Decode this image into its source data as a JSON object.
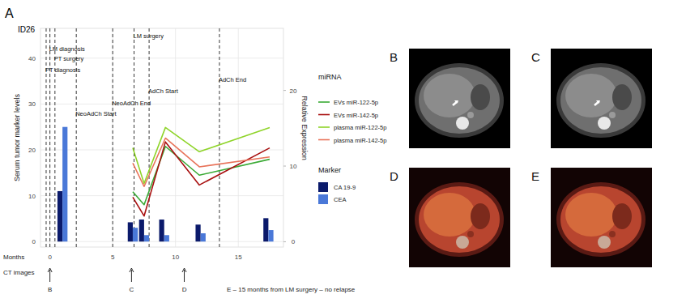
{
  "chart_data": {
    "type": "bar",
    "title": "A",
    "subtitle": "ID26",
    "x_label": "Months",
    "y_label": "Serum tumor marker levels",
    "y2_label": "Relative Expression",
    "xlim": [
      -0.75,
      18.6
    ],
    "xticks": [
      0,
      5,
      10,
      15
    ],
    "ylim": [
      -1.2,
      46.5
    ],
    "yticks": [
      0,
      10,
      20,
      30,
      40
    ],
    "y2lim": [
      -0.7,
      28.2
    ],
    "y2ticks": [
      0,
      10,
      20
    ],
    "grid": true,
    "legend_titles": {
      "lines": "miRNA",
      "bars": "Marker"
    },
    "events": [
      {
        "label": "PT diagnosis",
        "x": -0.3
      },
      {
        "label": "LM diagnosis",
        "x": 0
      },
      {
        "label": "PT surgery",
        "x": 0.4
      },
      {
        "label": "NeoAdCh Start",
        "x": 2.1
      },
      {
        "label": "NeoAdCh End",
        "x": 5
      },
      {
        "label": "LM surgery",
        "x": 6.7
      },
      {
        "label": "AdCh Start",
        "x": 7.9
      },
      {
        "label": "AdCh End",
        "x": 13.5
      }
    ],
    "series": [
      {
        "name": "CA 19-9",
        "type": "bar",
        "axis": "y",
        "color": "#0b1a6b",
        "x": [
          1.0,
          6.6,
          7.5,
          9.1,
          12.0,
          17.4
        ],
        "values": [
          11,
          4.2,
          4.8,
          4.8,
          3.7,
          5.1
        ]
      },
      {
        "name": "CEA",
        "type": "bar",
        "axis": "y",
        "color": "#4a78d8",
        "x": [
          1.0,
          6.6,
          7.5,
          9.1,
          12.0,
          17.4
        ],
        "values": [
          25,
          3,
          1.4,
          1.4,
          1.8,
          2.5
        ]
      },
      {
        "name": "EVs miR-122-5p",
        "type": "line",
        "axis": "y2",
        "color": "#3aaa35",
        "x": [
          6.6,
          7.5,
          9.2,
          11.9,
          17.5
        ],
        "values": [
          6.6,
          4.9,
          12.6,
          8.8,
          10.9
        ]
      },
      {
        "name": "EVs miR-142-5p",
        "type": "line",
        "axis": "y2",
        "color": "#a81010",
        "x": [
          6.6,
          7.5,
          9.2,
          11.9,
          17.5
        ],
        "values": [
          5.9,
          3.4,
          13.2,
          7.5,
          12.4
        ]
      },
      {
        "name": "plasma miR-122-5p",
        "type": "line",
        "axis": "y2",
        "color": "#8fd42a",
        "x": [
          6.6,
          7.5,
          9.2,
          11.9,
          17.5
        ],
        "values": [
          12.4,
          7.7,
          15.1,
          11.9,
          15.1
        ]
      },
      {
        "name": "plasma miR-142-5p",
        "type": "line",
        "axis": "y2",
        "color": "#e8735a",
        "x": [
          6.6,
          7.5,
          9.2,
          11.9,
          17.5
        ],
        "values": [
          10.4,
          7.3,
          13.7,
          9.9,
          11.2
        ]
      }
    ],
    "ct_images": {
      "label": "CT images",
      "points": [
        {
          "label": "B",
          "month": 0
        },
        {
          "label": "C",
          "month": 6.5
        },
        {
          "label": "D",
          "month": 10.7
        }
      ],
      "note": "E – 15 months from LM surgery – no relapse"
    }
  },
  "image_panels": {
    "labels": [
      "B",
      "C",
      "D",
      "E"
    ]
  }
}
